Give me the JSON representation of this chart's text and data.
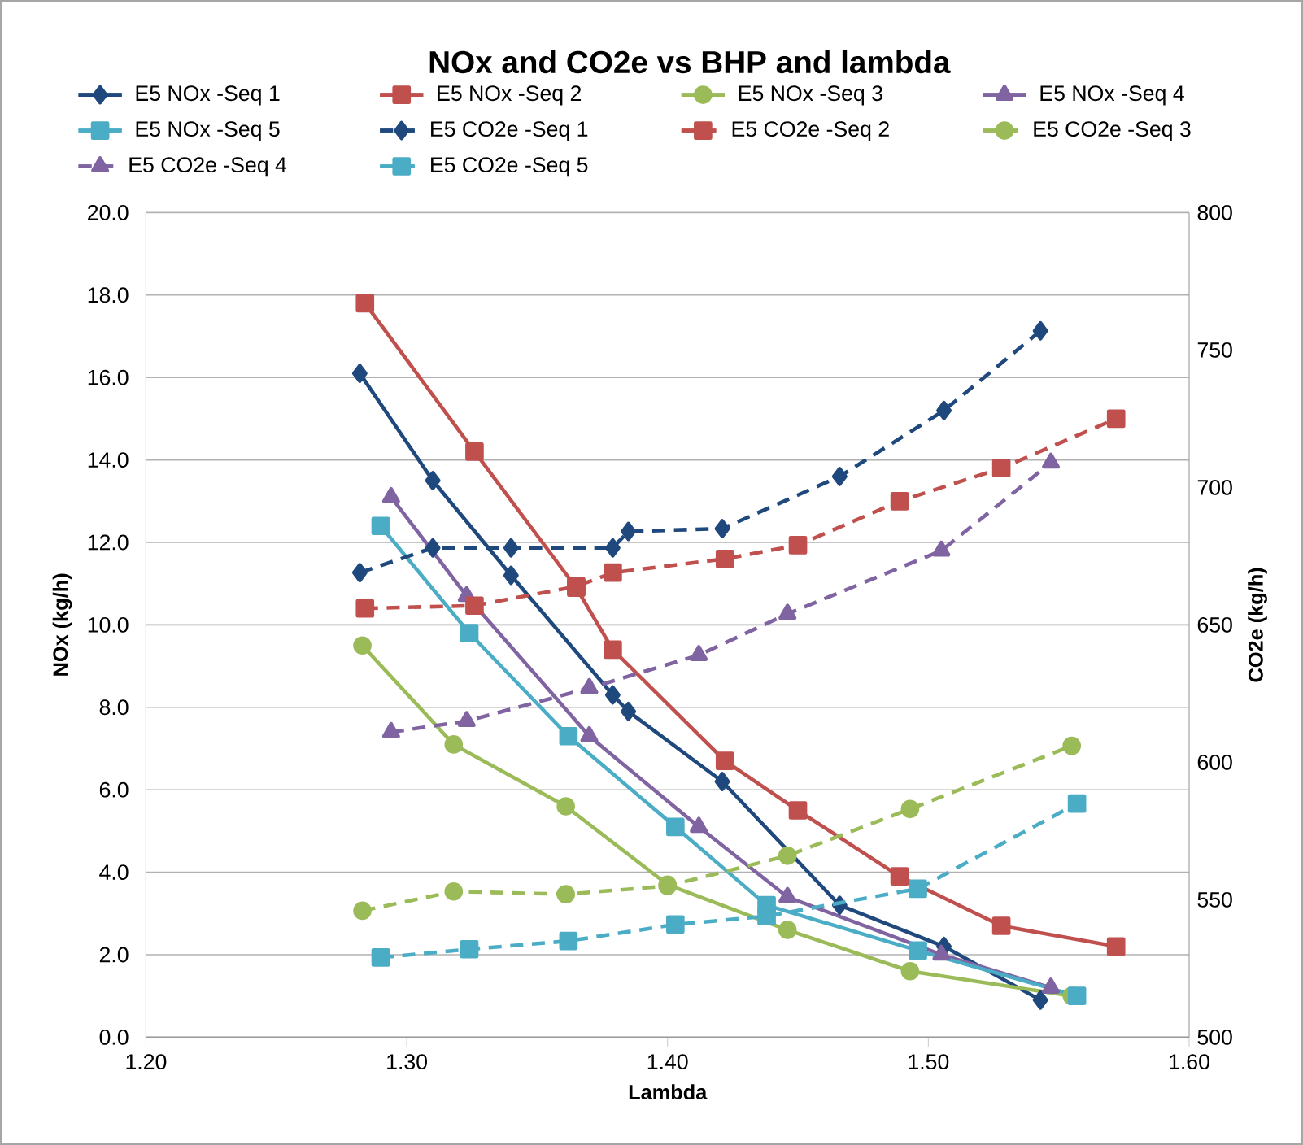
{
  "chart_data": {
    "type": "line",
    "title": "NOx and CO2e vs BHP and lambda",
    "xlabel": "Lambda",
    "ylabel": "NOx (kg/h)",
    "y2label": "CO2e (kg/h)",
    "xlim": [
      1.2,
      1.6
    ],
    "xticks": [
      {
        "value": 1.2,
        "label": "1.20"
      },
      {
        "value": 1.3,
        "label": "1.30"
      },
      {
        "value": 1.4,
        "label": "1.40"
      },
      {
        "value": 1.5,
        "label": "1.50"
      },
      {
        "value": 1.6,
        "label": "1.60"
      }
    ],
    "ylim": [
      0,
      20
    ],
    "yticks": [
      {
        "value": 0,
        "label": "0.0"
      },
      {
        "value": 2,
        "label": "2.0"
      },
      {
        "value": 4,
        "label": "4.0"
      },
      {
        "value": 6,
        "label": "6.0"
      },
      {
        "value": 8,
        "label": "8.0"
      },
      {
        "value": 10,
        "label": "10.0"
      },
      {
        "value": 12,
        "label": "12.0"
      },
      {
        "value": 14,
        "label": "14.0"
      },
      {
        "value": 16,
        "label": "16.0"
      },
      {
        "value": 18,
        "label": "18.0"
      },
      {
        "value": 20,
        "label": "20.0"
      }
    ],
    "y2lim": [
      500,
      800
    ],
    "y2ticks": [
      500,
      550,
      600,
      650,
      700,
      750,
      800
    ],
    "grid": "y",
    "legend": "top",
    "series": [
      {
        "name": "E5 NOx -Seq 1",
        "color": "#1f497d",
        "marker": "diamond",
        "line_style": "solid",
        "x": [
          1.282,
          1.31,
          1.34,
          1.379,
          1.385,
          1.421,
          1.466,
          1.506,
          1.543
        ],
        "values": [
          16.1,
          13.5,
          11.2,
          8.3,
          7.9,
          6.2,
          3.2,
          2.2,
          0.9
        ]
      },
      {
        "name": "E5 NOx -Seq 2",
        "color": "#c0504d",
        "marker": "square",
        "line_style": "solid",
        "x": [
          1.284,
          1.326,
          1.365,
          1.379,
          1.422,
          1.45,
          1.489,
          1.528,
          1.572
        ],
        "values": [
          17.8,
          14.2,
          10.9,
          9.4,
          6.7,
          5.5,
          3.9,
          2.7,
          2.2
        ]
      },
      {
        "name": "E5 NOx -Seq 3",
        "color": "#9bbb59",
        "marker": "circle",
        "line_style": "solid",
        "x": [
          1.283,
          1.318,
          1.361,
          1.4,
          1.446,
          1.493,
          1.555
        ],
        "values": [
          9.5,
          7.1,
          5.6,
          3.7,
          2.6,
          1.6,
          1.0
        ]
      },
      {
        "name": "E5 NOx -Seq 4",
        "color": "#8064a2",
        "marker": "triangle",
        "line_style": "solid",
        "x": [
          1.294,
          1.323,
          1.37,
          1.412,
          1.446,
          1.505,
          1.547
        ],
        "values": [
          13.1,
          10.7,
          7.3,
          5.1,
          3.4,
          2.0,
          1.2
        ]
      },
      {
        "name": "E5 NOx -Seq 5",
        "color": "#4bacc6",
        "marker": "square",
        "line_style": "solid",
        "x": [
          1.29,
          1.324,
          1.362,
          1.403,
          1.438,
          1.496,
          1.557
        ],
        "values": [
          12.4,
          9.8,
          7.3,
          5.1,
          3.2,
          2.1,
          1.0
        ]
      },
      {
        "name": "E5 CO2e -Seq 1",
        "color": "#1f497d",
        "marker": "diamond",
        "line_style": "dashed",
        "axis": "y2",
        "x": [
          1.282,
          1.31,
          1.34,
          1.379,
          1.385,
          1.421,
          1.466,
          1.506,
          1.543
        ],
        "values": [
          669,
          678,
          678,
          678,
          684,
          685,
          704,
          728,
          757
        ]
      },
      {
        "name": "E5 CO2e -Seq 2",
        "color": "#c0504d",
        "marker": "square",
        "line_style": "dashed",
        "axis": "y2",
        "x": [
          1.284,
          1.326,
          1.365,
          1.379,
          1.422,
          1.45,
          1.489,
          1.528,
          1.572
        ],
        "values": [
          656,
          657,
          664,
          669,
          674,
          679,
          695,
          707,
          725
        ]
      },
      {
        "name": "E5 CO2e -Seq 3",
        "color": "#9bbb59",
        "marker": "circle",
        "line_style": "dashed",
        "axis": "y2",
        "x": [
          1.283,
          1.318,
          1.361,
          1.4,
          1.446,
          1.493,
          1.555
        ],
        "values": [
          546,
          553,
          552,
          555,
          566,
          583,
          606
        ]
      },
      {
        "name": "E5 CO2e -Seq 4",
        "color": "#8064a2",
        "marker": "triangle",
        "line_style": "dashed",
        "axis": "y2",
        "x": [
          1.294,
          1.323,
          1.37,
          1.412,
          1.446,
          1.505,
          1.547
        ],
        "values": [
          611,
          615,
          627,
          639,
          654,
          677,
          709
        ]
      },
      {
        "name": "E5 CO2e -Seq 5",
        "color": "#4bacc6",
        "marker": "square",
        "line_style": "dashed",
        "axis": "y2",
        "x": [
          1.29,
          1.324,
          1.362,
          1.403,
          1.438,
          1.496,
          1.557
        ],
        "values": [
          529,
          532,
          535,
          541,
          544,
          554,
          585
        ]
      }
    ]
  }
}
